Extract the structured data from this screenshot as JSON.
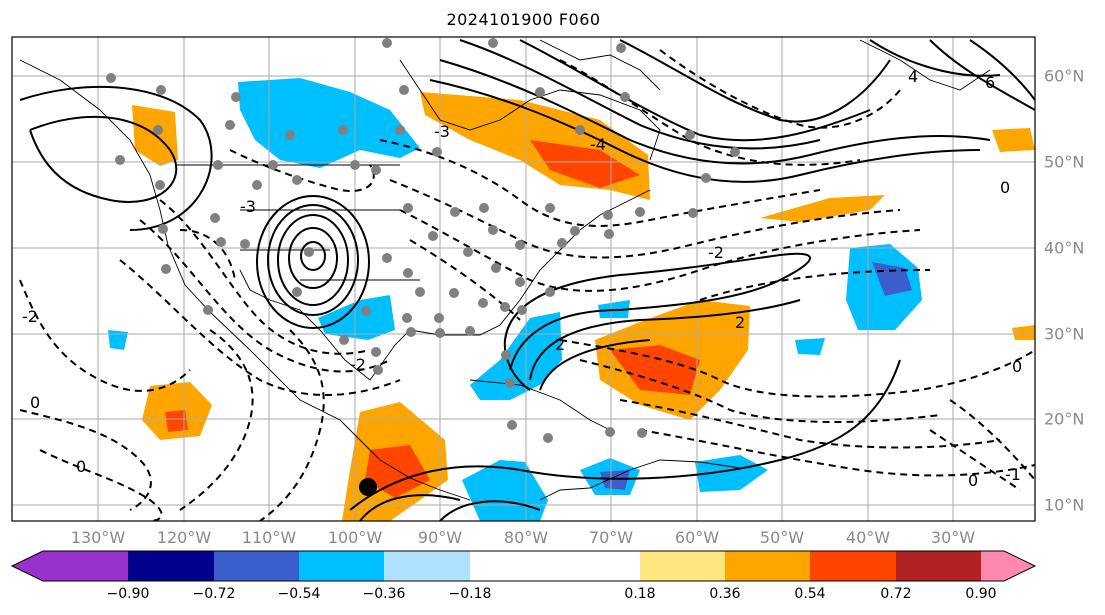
{
  "title": "2024101900 F060",
  "map": {
    "longitude_labels": [
      "130°W",
      "120°W",
      "110°W",
      "100°W",
      "90°W",
      "80°W",
      "70°W",
      "60°W",
      "50°W",
      "40°W",
      "30°W"
    ],
    "latitude_labels": [
      "60°N",
      "50°N",
      "40°N",
      "30°N",
      "20°N",
      "10°N"
    ],
    "contour_labels": [
      "6",
      "4",
      "2",
      "0",
      "-2",
      "-3",
      "-4",
      "-1"
    ],
    "colors": {
      "coast": "#000000",
      "grid": "#aaaaaa",
      "stations": "#808080"
    }
  },
  "colorbar": {
    "ticks": [
      "−0.90",
      "−0.72",
      "−0.54",
      "−0.36",
      "−0.18",
      "0.18",
      "0.36",
      "0.54",
      "0.72",
      "0.90"
    ],
    "colors": [
      "#9932cc",
      "#00008b",
      "#3a5fcd",
      "#00bfff",
      "#b0e2ff",
      "#ffffff",
      "#ffe680",
      "#ffa500",
      "#ff4500",
      "#b22222",
      "#ff88b0"
    ]
  }
}
